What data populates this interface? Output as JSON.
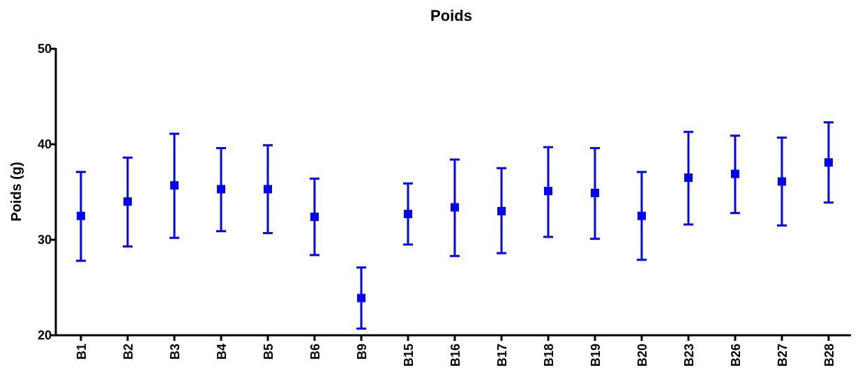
{
  "chart_data": {
    "type": "scatter",
    "title": "Poids",
    "xlabel": "",
    "ylabel": "Poids (g)",
    "ylim": [
      20,
      50
    ],
    "yticks": [
      20,
      30,
      40,
      50
    ],
    "grid": false,
    "color": "#0000ff",
    "categories": [
      "B1",
      "B2",
      "B3",
      "B4",
      "B5",
      "B6",
      "B9",
      "B15",
      "B16",
      "B17",
      "B18",
      "B19",
      "B20",
      "B23",
      "B26",
      "B27",
      "B28"
    ],
    "values": [
      32.5,
      34.0,
      35.7,
      35.3,
      35.3,
      32.4,
      23.9,
      32.7,
      33.4,
      33.0,
      35.1,
      34.9,
      32.5,
      36.5,
      36.9,
      36.1,
      38.1
    ],
    "err_low": [
      27.8,
      29.3,
      30.2,
      30.9,
      30.7,
      28.4,
      20.7,
      29.5,
      28.3,
      28.6,
      30.3,
      30.1,
      27.9,
      31.6,
      32.8,
      31.5,
      33.9
    ],
    "err_high": [
      37.1,
      38.6,
      41.1,
      39.6,
      39.9,
      36.4,
      27.1,
      35.9,
      38.4,
      37.5,
      39.7,
      39.6,
      37.1,
      41.3,
      40.9,
      40.7,
      42.3
    ]
  }
}
